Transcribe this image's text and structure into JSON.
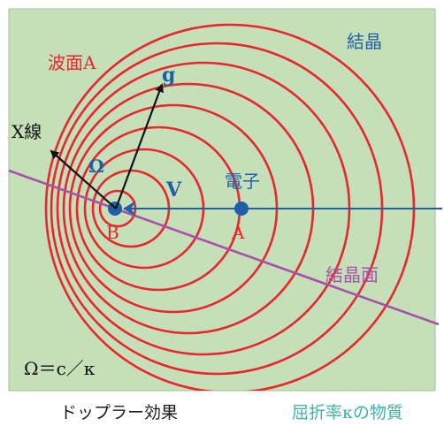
{
  "labels": {
    "crystal": "結晶",
    "wavefront": "波面A",
    "xray": "X線",
    "g_vector": "g",
    "omega": "Ω",
    "velocity": "V",
    "electron": "電子",
    "point_b": "B",
    "point_a": "A",
    "crystal_plane": "結晶面",
    "speed_relation": "Ω＝c／κ"
  },
  "captions": {
    "left": "ドップラー効果",
    "right": "屈折率κの物質"
  },
  "colors": {
    "crystal_fill": "#c5e0b8",
    "crystal_border": "#9fc48e",
    "wave": "#e8262c",
    "electron": "#1f5fa8",
    "plane": "#a552a8",
    "arrow": "#111111",
    "caption_right": "#3fb4a4"
  }
}
